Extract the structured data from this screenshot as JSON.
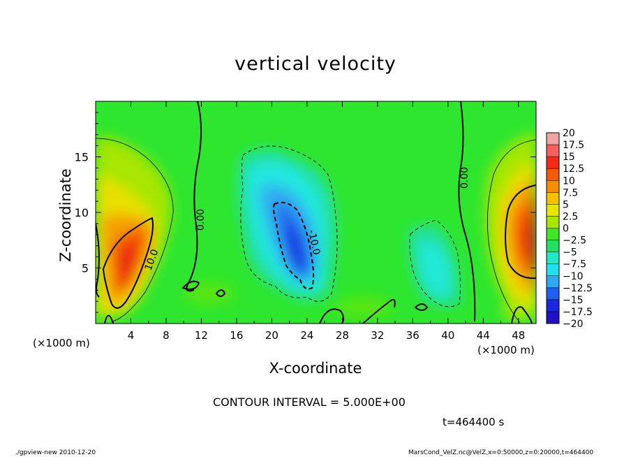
{
  "chart_data": {
    "type": "heatmap",
    "title": "vertical velocity",
    "xlabel": "X-coordinate",
    "ylabel": "Z-coordinate",
    "x_unit_label": "(×1000 m)",
    "xlim": [
      0,
      50
    ],
    "ylim": [
      0,
      20
    ],
    "x_ticks": [
      "4",
      "8",
      "12",
      "16",
      "20",
      "24",
      "28",
      "32",
      "36",
      "40",
      "44",
      "48"
    ],
    "y_ticks": [
      "5",
      "10",
      "15"
    ],
    "colorbar": {
      "labels": [
        "20",
        "17.5",
        "15",
        "12.5",
        "10",
        "7.5",
        "5",
        "2.5",
        "0",
        "-2.5",
        "-5",
        "-7.5",
        "-10",
        "-12.5",
        "-15",
        "-17.5",
        "-20"
      ],
      "colors": [
        "#f4a3a3",
        "#f46060",
        "#f42a18",
        "#f45a0a",
        "#f49000",
        "#f4c000",
        "#e6e600",
        "#a8e600",
        "#3ee628",
        "#22e060",
        "#20e8c8",
        "#20e0f0",
        "#30a8f0",
        "#2060f0",
        "#1a28e0",
        "#2010c8",
        "#6010b0"
      ]
    },
    "contour_labels": [
      "10.0",
      "0.00",
      "-10.0",
      "0.00"
    ],
    "contour_interval_text": "CONTOUR INTERVAL = 5.000E+00",
    "time_text": "t=464400 s",
    "footer_left": "./gpview-new  2010-12-20",
    "footer_right": "MarsCond_VelZ.nc@VelZ,x=0:50000,z=0:20000,t=464400"
  }
}
